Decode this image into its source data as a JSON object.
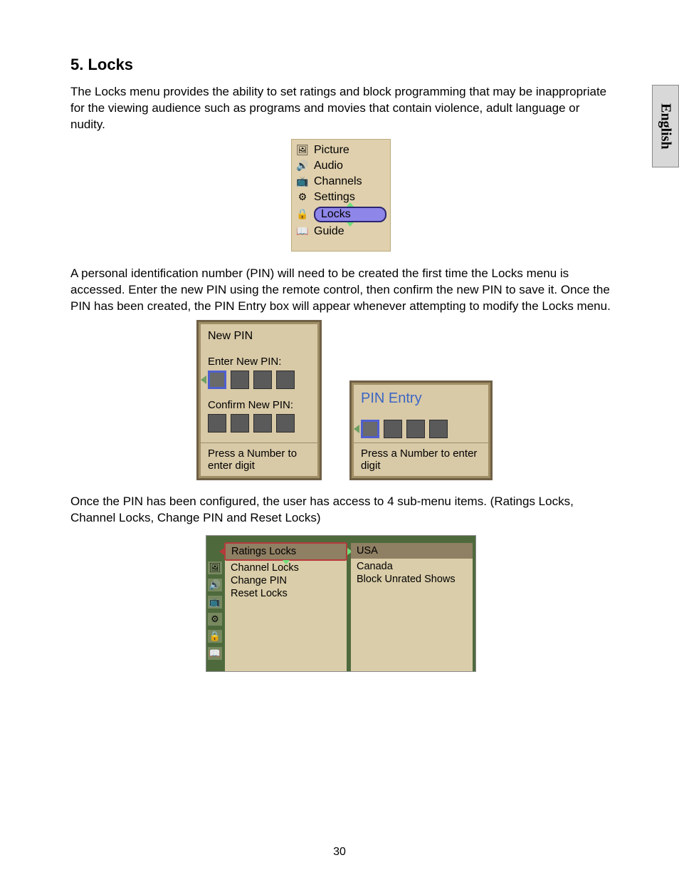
{
  "page": {
    "number": "30",
    "language_tab": "English"
  },
  "section": {
    "title": "5. Locks",
    "para1": "The Locks menu provides the ability to set ratings and block programming that may be inappropriate for the viewing audience such as programs and movies that contain violence, adult language or nudity.",
    "para2": "A personal identification number (PIN) will need to be created the first time the Locks menu is accessed. Enter the new PIN using the remote control, then confirm the new PIN to save it. Once the PIN has been created, the PIN Entry box will appear whenever attempting to modify the Locks menu.",
    "para3": "Once the PIN has been configured, the user has access to 4 sub-menu items. (Ratings Locks, Channel Locks, Change PIN and Reset Locks)"
  },
  "main_menu": {
    "items": [
      {
        "label": "Picture",
        "icon": "🖼",
        "selected": false
      },
      {
        "label": "Audio",
        "icon": "🔊",
        "selected": false
      },
      {
        "label": "Channels",
        "icon": "📺",
        "selected": false
      },
      {
        "label": "Settings",
        "icon": "⚙",
        "selected": false
      },
      {
        "label": "Locks",
        "icon": "🔒",
        "selected": true
      },
      {
        "label": "Guide",
        "icon": "📖",
        "selected": false
      }
    ],
    "colors": {
      "panel_bg": "#e0d0ad",
      "highlight_bg": "#8f86e9",
      "highlight_border": "#2a2570",
      "arrow_color": "#6fe07a"
    }
  },
  "new_pin_dialog": {
    "title": "New PIN",
    "enter_label": "Enter New PIN:",
    "confirm_label": "Confirm New PIN:",
    "hint": "Press a Number to enter digit",
    "digit_count": 4,
    "active_digit_index": 0,
    "colors": {
      "panel_bg": "#d8c9a7",
      "digit_bg": "#5a5a5a",
      "active_border": "#4f5fcf"
    }
  },
  "pin_entry_dialog": {
    "title": "PIN Entry",
    "hint": "Press a Number to enter digit",
    "digit_count": 4,
    "active_digit_index": 0,
    "title_color": "#3b66c4"
  },
  "locks_submenu": {
    "left": {
      "header": "Ratings Locks",
      "items": [
        "Channel Locks",
        "Change PIN",
        "Reset Locks"
      ],
      "selected": true
    },
    "right": {
      "header": "USA",
      "items": [
        "Canada",
        "Block Unrated Shows"
      ],
      "selected": false
    },
    "side_icons": [
      "🖼",
      "🔊",
      "📺",
      "⚙",
      "🔒",
      "📖"
    ],
    "colors": {
      "outer_bg": "#4e6a3d",
      "panel_bg": "#dacda9",
      "header_bg": "#8f7f63",
      "sel_border": "#b53a3a"
    }
  }
}
